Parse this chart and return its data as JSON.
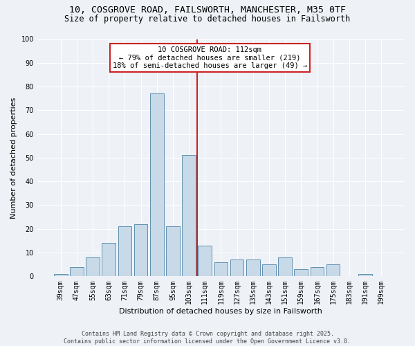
{
  "title_line1": "10, COSGROVE ROAD, FAILSWORTH, MANCHESTER, M35 0TF",
  "title_line2": "Size of property relative to detached houses in Failsworth",
  "xlabel": "Distribution of detached houses by size in Failsworth",
  "ylabel": "Number of detached properties",
  "categories": [
    "39sqm",
    "47sqm",
    "55sqm",
    "63sqm",
    "71sqm",
    "79sqm",
    "87sqm",
    "95sqm",
    "103sqm",
    "111sqm",
    "119sqm",
    "127sqm",
    "135sqm",
    "143sqm",
    "151sqm",
    "159sqm",
    "167sqm",
    "175sqm",
    "183sqm",
    "191sqm",
    "199sqm"
  ],
  "values": [
    1,
    4,
    8,
    14,
    21,
    22,
    77,
    21,
    51,
    13,
    6,
    7,
    7,
    5,
    8,
    3,
    4,
    5,
    0,
    1,
    0
  ],
  "bar_color": "#c8d9e8",
  "bar_edge_color": "#6090b0",
  "vline_color": "#cc2222",
  "annotation_text": "10 COSGROVE ROAD: 112sqm\n← 79% of detached houses are smaller (219)\n18% of semi-detached houses are larger (49) →",
  "annotation_box_edgecolor": "#cc2222",
  "background_color": "#eef2f7",
  "grid_color": "#ffffff",
  "ylim": [
    0,
    100
  ],
  "yticks": [
    0,
    10,
    20,
    30,
    40,
    50,
    60,
    70,
    80,
    90,
    100
  ],
  "footer_line1": "Contains HM Land Registry data © Crown copyright and database right 2025.",
  "footer_line2": "Contains public sector information licensed under the Open Government Licence v3.0.",
  "title_fontsize": 9.5,
  "subtitle_fontsize": 8.5,
  "axis_label_fontsize": 8,
  "tick_fontsize": 7,
  "annotation_fontsize": 7.5,
  "footer_fontsize": 6
}
